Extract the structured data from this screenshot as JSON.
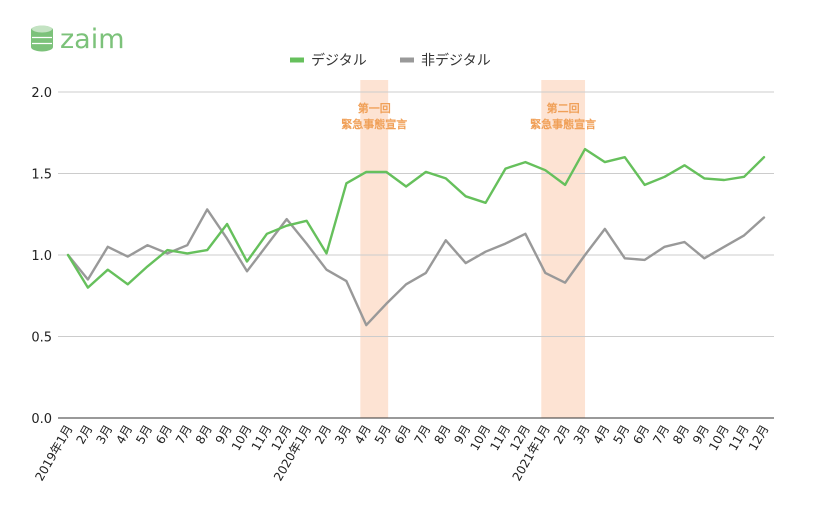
{
  "logo": {
    "text": "zaim",
    "color": "#7cc27a"
  },
  "chart_data": {
    "type": "line",
    "x": [
      "2019年1月",
      "2月",
      "3月",
      "4月",
      "5月",
      "6月",
      "7月",
      "8月",
      "9月",
      "10月",
      "11月",
      "12月",
      "2020年1月",
      "2月",
      "3月",
      "4月",
      "5月",
      "6月",
      "7月",
      "8月",
      "9月",
      "10月",
      "11月",
      "12月",
      "2021年1月",
      "2月",
      "3月",
      "4月",
      "5月",
      "6月",
      "7月",
      "8月",
      "9月",
      "10月",
      "11月",
      "12月"
    ],
    "series": [
      {
        "name": "デジタル",
        "color": "#66c05c",
        "values": [
          1.0,
          0.8,
          0.91,
          0.82,
          0.93,
          1.03,
          1.01,
          1.03,
          1.19,
          0.96,
          1.13,
          1.18,
          1.21,
          1.01,
          1.44,
          1.51,
          1.51,
          1.42,
          1.51,
          1.47,
          1.36,
          1.32,
          1.53,
          1.57,
          1.52,
          1.43,
          1.65,
          1.57,
          1.6,
          1.43,
          1.48,
          1.55,
          1.47,
          1.46,
          1.48,
          1.6
        ]
      },
      {
        "name": "非デジタル",
        "color": "#999999",
        "values": [
          1.0,
          0.85,
          1.05,
          0.99,
          1.06,
          1.01,
          1.06,
          1.28,
          1.1,
          0.9,
          1.06,
          1.22,
          1.07,
          0.91,
          0.84,
          0.57,
          0.7,
          0.82,
          0.89,
          1.09,
          0.95,
          1.02,
          1.07,
          1.13,
          0.89,
          0.83,
          1.0,
          1.16,
          0.98,
          0.97,
          1.05,
          1.08,
          0.98,
          1.05,
          1.12,
          1.23
        ]
      }
    ],
    "ylim": [
      0,
      2.0
    ],
    "yticks": [
      "0.0",
      "0.5",
      "1.0",
      "1.5",
      "2.0"
    ],
    "grid": true,
    "legend": "top-center",
    "annotations": [
      {
        "label_line1": "第一回",
        "label_line2": "緊急事態宣言",
        "x_start": 14.7,
        "x_end": 16.1,
        "color": "#fde3d3",
        "text_color": "#f0a058"
      },
      {
        "label_line1": "第二回",
        "label_line2": "緊急事態宣言",
        "x_start": 23.8,
        "x_end": 26.0,
        "color": "#fde3d3",
        "text_color": "#f0a058"
      }
    ]
  }
}
